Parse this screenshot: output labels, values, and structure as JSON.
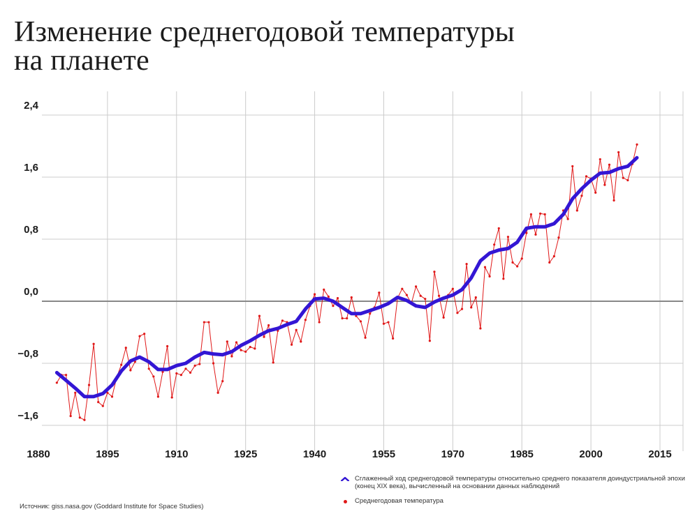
{
  "title_lines": [
    "Изменение среднегодовой температуры",
    "на планете"
  ],
  "legend": {
    "smoothed": "Сглаженный ход среднегодовой температуры относительно среднего показателя доиндустриальной эпохи (конец XIX века), вычисленный на основании данных наблюдений",
    "annual": "Среднегодовая температура"
  },
  "source": "Источник:  giss.nasa.gov (Goddard Institute for Space Studies)",
  "colors": {
    "smoothed": "#3316d4",
    "annual": "#e01818",
    "grid": "#cccccc",
    "zero": "#888888"
  },
  "chart_data": {
    "type": "line",
    "title": "Изменение среднегодовой температуры на планете",
    "xlabel": "",
    "ylabel": "",
    "xlim": [
      1880,
      2018
    ],
    "ylim": [
      -1.6,
      2.4
    ],
    "x_ticks": [
      1880,
      1895,
      1910,
      1925,
      1940,
      1955,
      1970,
      1985,
      2000,
      2015
    ],
    "y_ticks": [
      -1.6,
      -0.8,
      0.0,
      0.8,
      1.6,
      2.4
    ],
    "y_tick_labels": [
      "−1,6",
      "−0,8",
      "0,0",
      "0,8",
      "1,6",
      "2,4"
    ],
    "grid": true,
    "legend_position": "bottom-right",
    "series": [
      {
        "name": "Сглаженный ход среднегодовой температуры относительно среднего показателя доиндустриальной эпохи (конец XIX века), вычисленный на основании данных наблюдений",
        "style": "thick-line",
        "x": [
          1884,
          1886,
          1888,
          1890,
          1892,
          1894,
          1896,
          1898,
          1900,
          1902,
          1904,
          1906,
          1908,
          1910,
          1912,
          1914,
          1916,
          1918,
          1920,
          1922,
          1924,
          1926,
          1928,
          1930,
          1932,
          1934,
          1936,
          1938,
          1940,
          1942,
          1944,
          1946,
          1948,
          1950,
          1952,
          1954,
          1956,
          1958,
          1960,
          1962,
          1964,
          1966,
          1968,
          1970,
          1972,
          1974,
          1976,
          1978,
          1980,
          1982,
          1984,
          1986,
          1988,
          1990,
          1992,
          1994,
          1996,
          1998,
          2000,
          2002,
          2004,
          2006,
          2008,
          2010
        ],
        "values": [
          -0.92,
          -1.02,
          -1.12,
          -1.23,
          -1.23,
          -1.19,
          -1.08,
          -0.9,
          -0.77,
          -0.72,
          -0.78,
          -0.88,
          -0.88,
          -0.83,
          -0.8,
          -0.72,
          -0.66,
          -0.68,
          -0.69,
          -0.65,
          -0.57,
          -0.51,
          -0.44,
          -0.38,
          -0.35,
          -0.3,
          -0.26,
          -0.1,
          0.03,
          0.04,
          0.0,
          -0.08,
          -0.16,
          -0.16,
          -0.12,
          -0.08,
          -0.03,
          0.05,
          0.01,
          -0.06,
          -0.08,
          -0.01,
          0.04,
          0.08,
          0.15,
          0.3,
          0.52,
          0.62,
          0.66,
          0.68,
          0.76,
          0.94,
          0.96,
          0.96,
          1.0,
          1.12,
          1.32,
          1.45,
          1.56,
          1.65,
          1.66,
          1.71,
          1.74,
          1.85
        ]
      },
      {
        "name": "Среднегодовая температура",
        "style": "thin-line-markers",
        "x": [
          1884,
          1885,
          1886,
          1887,
          1888,
          1889,
          1890,
          1891,
          1892,
          1893,
          1894,
          1895,
          1896,
          1897,
          1898,
          1899,
          1900,
          1901,
          1902,
          1903,
          1904,
          1905,
          1906,
          1907,
          1908,
          1909,
          1910,
          1911,
          1912,
          1913,
          1914,
          1915,
          1916,
          1917,
          1918,
          1919,
          1920,
          1921,
          1922,
          1923,
          1924,
          1925,
          1926,
          1927,
          1928,
          1929,
          1930,
          1931,
          1932,
          1933,
          1934,
          1935,
          1936,
          1937,
          1938,
          1939,
          1940,
          1941,
          1942,
          1943,
          1944,
          1945,
          1946,
          1947,
          1948,
          1949,
          1950,
          1951,
          1952,
          1953,
          1954,
          1955,
          1956,
          1957,
          1958,
          1959,
          1960,
          1961,
          1962,
          1963,
          1964,
          1965,
          1966,
          1967,
          1968,
          1969,
          1970,
          1971,
          1972,
          1973,
          1974,
          1975,
          1976,
          1977,
          1978,
          1979,
          1980,
          1981,
          1982,
          1983,
          1984,
          1985,
          1986,
          1987,
          1988,
          1989,
          1990,
          1991,
          1992,
          1993,
          1994,
          1995,
          1996,
          1997,
          1998,
          1999,
          2000,
          2001,
          2002,
          2003,
          2004,
          2005,
          2006,
          2007,
          2008,
          2009,
          2010
        ],
        "values": [
          -1.05,
          -0.95,
          -0.95,
          -1.48,
          -1.18,
          -1.5,
          -1.53,
          -1.08,
          -0.55,
          -1.3,
          -1.35,
          -1.18,
          -1.23,
          -0.98,
          -0.82,
          -0.6,
          -0.89,
          -0.78,
          -0.45,
          -0.42,
          -0.87,
          -0.97,
          -1.23,
          -0.91,
          -0.58,
          -1.24,
          -0.93,
          -0.95,
          -0.87,
          -0.92,
          -0.83,
          -0.81,
          -0.27,
          -0.27,
          -0.8,
          -1.18,
          -1.03,
          -0.52,
          -0.71,
          -0.53,
          -0.63,
          -0.65,
          -0.59,
          -0.61,
          -0.19,
          -0.46,
          -0.31,
          -0.79,
          -0.38,
          -0.25,
          -0.27,
          -0.56,
          -0.37,
          -0.52,
          -0.24,
          -0.06,
          0.09,
          -0.27,
          0.15,
          0.06,
          -0.06,
          0.04,
          -0.22,
          -0.22,
          0.05,
          -0.19,
          -0.26,
          -0.47,
          -0.16,
          -0.08,
          0.11,
          -0.29,
          -0.27,
          -0.48,
          0.04,
          0.16,
          0.08,
          -0.03,
          0.19,
          0.07,
          0.03,
          -0.51,
          0.38,
          0.07,
          -0.21,
          0.08,
          0.16,
          -0.15,
          -0.1,
          0.48,
          -0.08,
          0.05,
          -0.35,
          0.44,
          0.32,
          0.73,
          0.94,
          0.29,
          0.83,
          0.5,
          0.45,
          0.55,
          0.88,
          1.12,
          0.86,
          1.13,
          1.12,
          0.5,
          0.58,
          0.82,
          1.17,
          1.06,
          1.74,
          1.17,
          1.36,
          1.61,
          1.58,
          1.4,
          1.83,
          1.5,
          1.76,
          1.3,
          1.92,
          1.59,
          1.56,
          1.77,
          2.02
        ]
      }
    ]
  }
}
